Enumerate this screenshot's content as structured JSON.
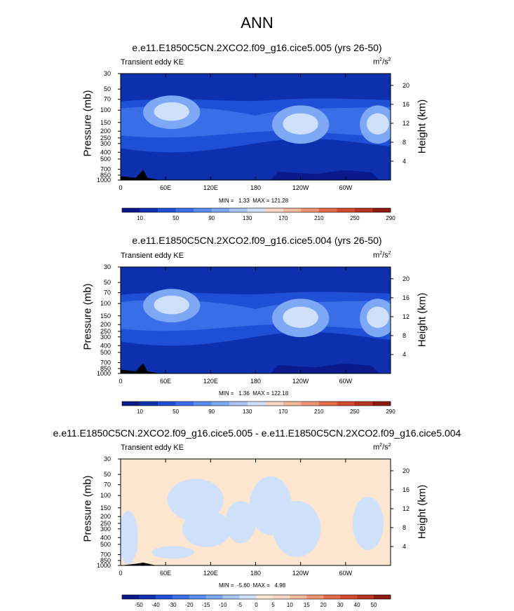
{
  "figure_title": "ANN",
  "panels": [
    {
      "title": "e.e11.E1850C5CN.2XCO2.f09_g16.cice5.005 (yrs 26-50)",
      "variable": "Transient eddy KE",
      "units_base": "m",
      "units_exp1": "2",
      "units_mid": "/s",
      "units_exp2": "2",
      "ylabel": "Pressure (mb)",
      "ylabel_right": "Height (km)",
      "min_max": "MIN =   1.33  MAX = 121.28"
    },
    {
      "title": "e.e11.E1850C5CN.2XCO2.f09_g16.cice5.004 (yrs 26-50)",
      "variable": "Transient eddy KE",
      "units_base": "m",
      "units_exp1": "2",
      "units_mid": "/s",
      "units_exp2": "2",
      "ylabel": "Pressure (mb)",
      "ylabel_right": "Height (km)",
      "min_max": "MIN =   1.36  MAX = 122.18"
    },
    {
      "title": "e.e11.E1850C5CN.2XCO2.f09_g16.cice5.005 - e.e11.E1850C5CN.2XCO2.f09_g16.cice5.004",
      "variable": "Transient eddy KE",
      "units_base": "m",
      "units_exp1": "2",
      "units_mid": "/s",
      "units_exp2": "2",
      "ylabel": "Pressure (mb)",
      "ylabel_right": "Height (km)",
      "min_max": "MIN =  -5.60  MAX =   4.98"
    }
  ],
  "chart_data": [
    {
      "type": "heatmap",
      "title": "e.e11.E1850C5CN.2XCO2.f09_g16.cice5.005 (yrs 26-50)",
      "x_ticks": [
        "0",
        "60E",
        "120E",
        "180",
        "120W",
        "60W"
      ],
      "x_values": [
        0,
        60,
        120,
        180,
        240,
        300
      ],
      "xlim": [
        0,
        360
      ],
      "y_ticks": [
        "30",
        "50",
        "70",
        "100",
        "150",
        "200",
        "250",
        "300",
        "400",
        "500",
        "700",
        "850",
        "1000"
      ],
      "y_values": [
        30,
        50,
        70,
        100,
        150,
        200,
        250,
        300,
        400,
        500,
        700,
        850,
        1000
      ],
      "ylim": [
        1000,
        30
      ],
      "y_scale": "log",
      "y2_ticks": [
        "20",
        "16",
        "12",
        "8",
        "4"
      ],
      "y2_values": [
        20,
        16,
        12,
        8,
        4
      ],
      "colorbar_levels": [
        10,
        50,
        90,
        130,
        170,
        210,
        250,
        290
      ],
      "colorbar_colors": [
        "#0a1a8c",
        "#0e2fae",
        "#1e4fd6",
        "#3a6ee8",
        "#5a8cf0",
        "#7ea8f4",
        "#a8c4f8",
        "#cfe0fb",
        "#f7d7c4",
        "#f4b89a",
        "#ef9472",
        "#e56b4a",
        "#d44a2e",
        "#b83420",
        "#8c1a10"
      ],
      "field_colors": [
        "#0e2fae",
        "#1e4fd6",
        "#3a6ee8",
        "#7ea8f4",
        "#cfe0fb"
      ],
      "jets": [
        {
          "lon": 68,
          "p": 100,
          "value": 121.28
        },
        {
          "lon": 240,
          "p": 150,
          "value": 115
        },
        {
          "lon": 343,
          "p": 150,
          "value": 110
        }
      ],
      "min": 1.33,
      "max": 121.28
    },
    {
      "type": "heatmap",
      "title": "e.e11.E1850C5CN.2XCO2.f09_g16.cice5.004 (yrs 26-50)",
      "x_ticks": [
        "0",
        "60E",
        "120E",
        "180",
        "120W",
        "60W"
      ],
      "x_values": [
        0,
        60,
        120,
        180,
        240,
        300
      ],
      "xlim": [
        0,
        360
      ],
      "y_ticks": [
        "30",
        "50",
        "70",
        "100",
        "150",
        "200",
        "250",
        "300",
        "400",
        "500",
        "700",
        "850",
        "1000"
      ],
      "y_values": [
        30,
        50,
        70,
        100,
        150,
        200,
        250,
        300,
        400,
        500,
        700,
        850,
        1000
      ],
      "ylim": [
        1000,
        30
      ],
      "y_scale": "log",
      "y2_ticks": [
        "20",
        "16",
        "12",
        "8",
        "4"
      ],
      "y2_values": [
        20,
        16,
        12,
        8,
        4
      ],
      "colorbar_levels": [
        10,
        50,
        90,
        130,
        170,
        210,
        250,
        290
      ],
      "colorbar_colors": [
        "#0a1a8c",
        "#0e2fae",
        "#1e4fd6",
        "#3a6ee8",
        "#5a8cf0",
        "#7ea8f4",
        "#a8c4f8",
        "#cfe0fb",
        "#f7d7c4",
        "#f4b89a",
        "#ef9472",
        "#e56b4a",
        "#d44a2e",
        "#b83420",
        "#8c1a10"
      ],
      "field_colors": [
        "#0e2fae",
        "#1e4fd6",
        "#3a6ee8",
        "#7ea8f4",
        "#cfe0fb"
      ],
      "jets": [
        {
          "lon": 68,
          "p": 100,
          "value": 122.18
        },
        {
          "lon": 240,
          "p": 150,
          "value": 115
        },
        {
          "lon": 343,
          "p": 150,
          "value": 110
        }
      ],
      "min": 1.36,
      "max": 122.18
    },
    {
      "type": "heatmap",
      "title": "e.e11.E1850C5CN.2XCO2.f09_g16.cice5.005 - e.e11.E1850C5CN.2XCO2.f09_g16.cice5.004",
      "x_ticks": [
        "0",
        "60E",
        "120E",
        "180",
        "120W",
        "60W"
      ],
      "x_values": [
        0,
        60,
        120,
        180,
        240,
        300
      ],
      "xlim": [
        0,
        360
      ],
      "y_ticks": [
        "30",
        "50",
        "70",
        "100",
        "150",
        "200",
        "250",
        "300",
        "400",
        "500",
        "700",
        "850",
        "1000"
      ],
      "y_values": [
        30,
        50,
        70,
        100,
        150,
        200,
        250,
        300,
        400,
        500,
        700,
        850,
        1000
      ],
      "ylim": [
        1000,
        30
      ],
      "y_scale": "log",
      "y2_ticks": [
        "20",
        "16",
        "12",
        "8",
        "4"
      ],
      "y2_values": [
        20,
        16,
        12,
        8,
        4
      ],
      "colorbar_levels": [
        -50,
        -40,
        -30,
        -20,
        -15,
        -10,
        -5,
        0,
        5,
        10,
        15,
        20,
        30,
        40,
        50
      ],
      "colorbar_colors": [
        "#0a1a8c",
        "#0e2fae",
        "#1e4fd6",
        "#3a6ee8",
        "#5a8cf0",
        "#7ea8f4",
        "#a8c4f8",
        "#cfe0fb",
        "#fde6d0",
        "#f7d7c4",
        "#f4b89a",
        "#ef9472",
        "#e56b4a",
        "#d44a2e",
        "#b83420",
        "#8c1a10"
      ],
      "field_colors": [
        "#fde6d0",
        "#cfe0fb"
      ],
      "min": -5.6,
      "max": 4.98
    }
  ]
}
